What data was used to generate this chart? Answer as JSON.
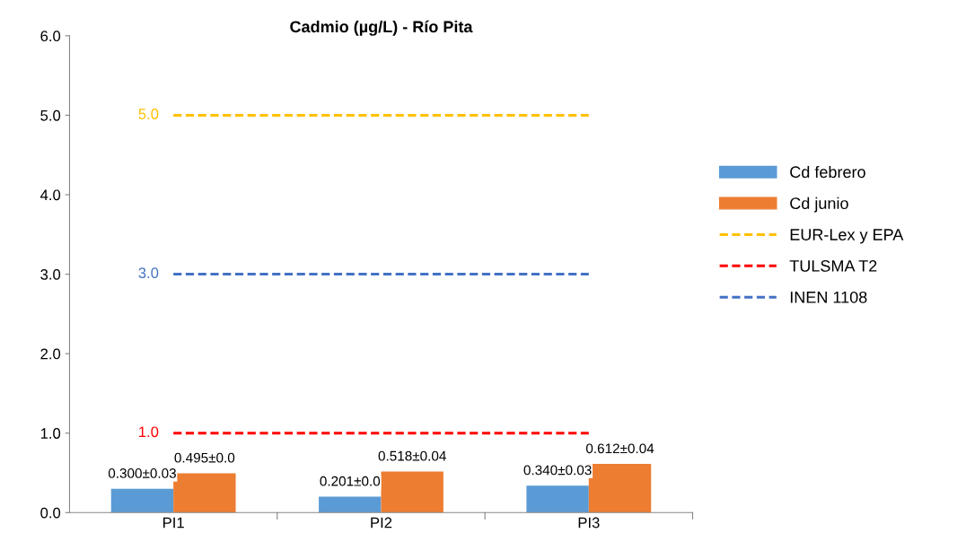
{
  "chart_data": {
    "type": "bar",
    "title": "Cadmio (µg/L) - Río Pita",
    "categories": [
      "PI1",
      "PI2",
      "PI3"
    ],
    "series": [
      {
        "name": "Cd febrero",
        "color": "#5b9bd5",
        "values": [
          0.3,
          0.201,
          0.34
        ],
        "value_labels": [
          "0.300±0.03",
          "0.201±0.0",
          "0.340±0.03"
        ]
      },
      {
        "name": "Cd junio",
        "color": "#ed7d31",
        "values": [
          0.495,
          0.518,
          0.612
        ],
        "value_labels": [
          "0.495±0.0",
          "0.518±0.04",
          "0.612±0.04"
        ]
      },
      {
        "name": "EUR-Lex y EPA",
        "type": "line",
        "color": "#ffc000",
        "line_style": "dashed",
        "values": [
          5.0,
          5.0,
          5.0
        ],
        "value_labels": [
          "5.0",
          null,
          null
        ]
      },
      {
        "name": "TULSMA T2",
        "type": "line",
        "color": "#ff0000",
        "line_style": "dashed",
        "values": [
          1.0,
          1.0,
          1.0
        ],
        "value_labels": [
          "1.0",
          null,
          null
        ]
      },
      {
        "name": "INEN 1108",
        "type": "line",
        "color": "#4472c4",
        "line_style": "dashed",
        "values": [
          3.0,
          3.0,
          3.0
        ],
        "value_labels": [
          "3.0",
          null,
          null
        ]
      }
    ],
    "ylim": [
      0,
      6
    ],
    "yticks": [
      {
        "value": 0,
        "label": "0.0"
      },
      {
        "value": 1,
        "label": "1.0"
      },
      {
        "value": 2,
        "label": "2.0"
      },
      {
        "value": 3,
        "label": "3.0"
      },
      {
        "value": 4,
        "label": "4.0"
      },
      {
        "value": 5,
        "label": "5.0"
      },
      {
        "value": 6,
        "label": "6.0"
      }
    ],
    "grid": false,
    "legend": "right",
    "marker": "none"
  }
}
